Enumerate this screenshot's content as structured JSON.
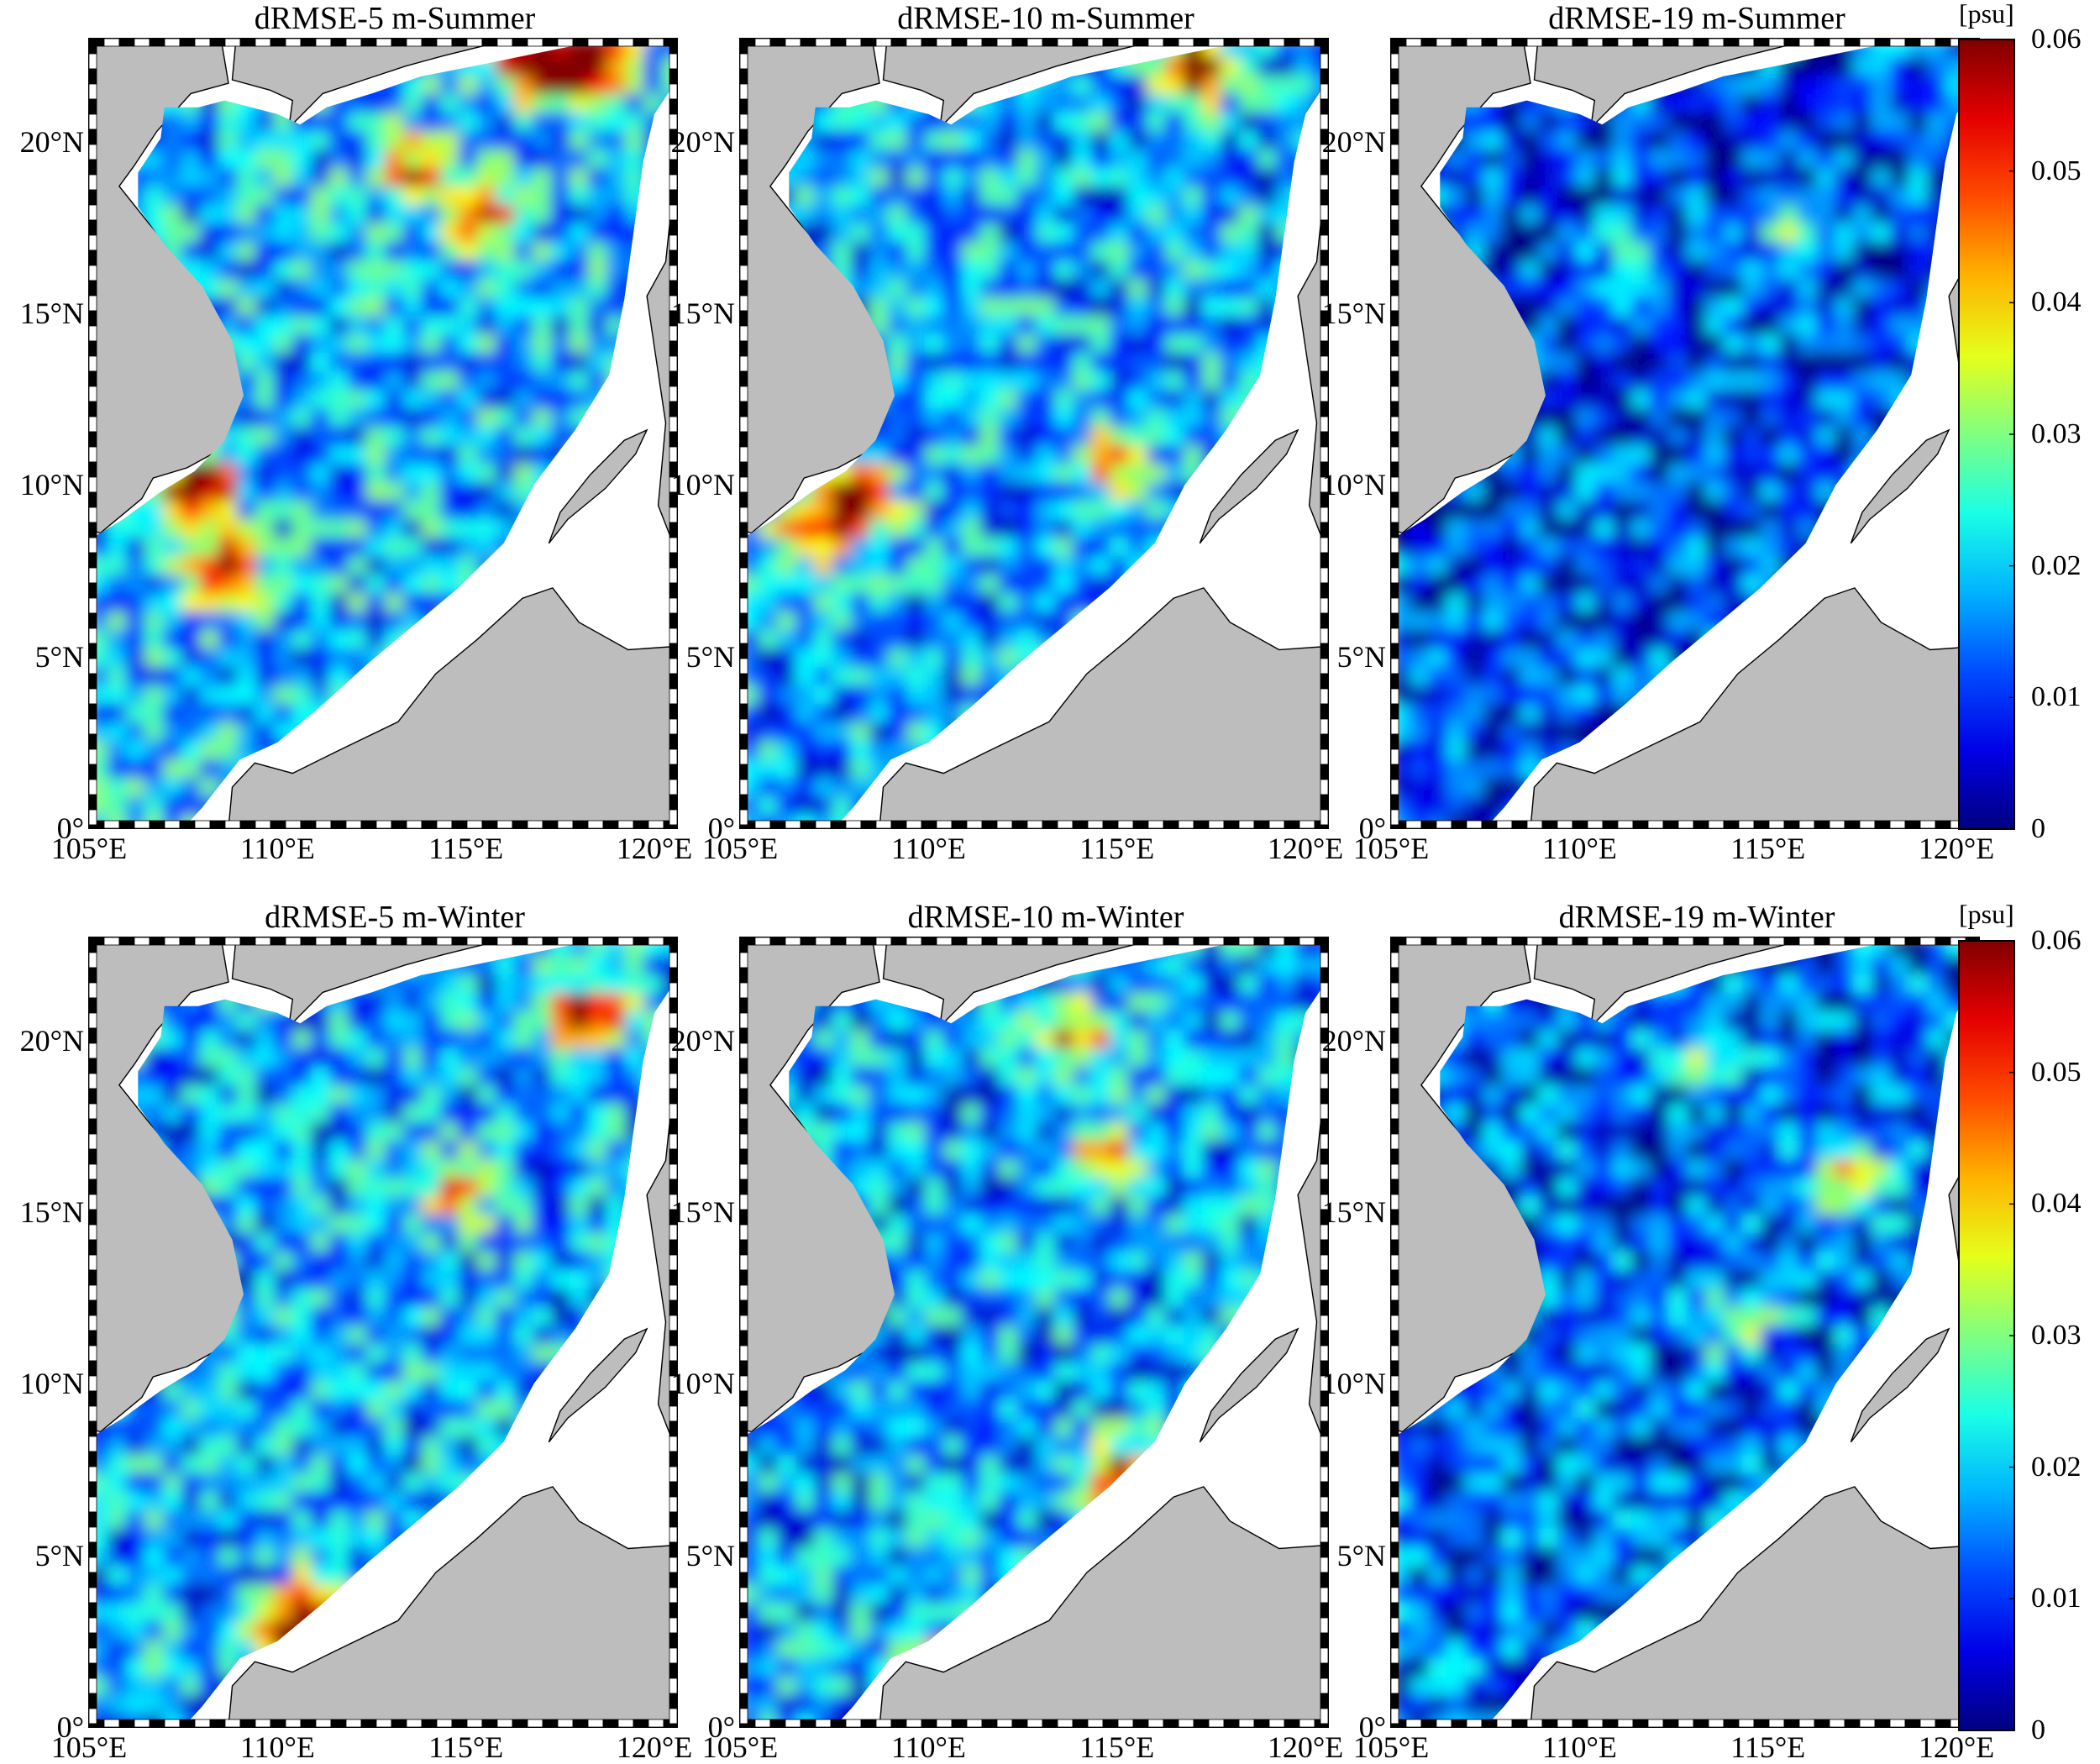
{
  "panels": [
    {
      "title": "dRMSE-5 m-Summer",
      "season": "summer",
      "depth": "5 m"
    },
    {
      "title": "dRMSE-10 m-Summer",
      "season": "summer",
      "depth": "10 m"
    },
    {
      "title": "dRMSE-19 m-Summer",
      "season": "summer",
      "depth": "19 m"
    },
    {
      "title": "dRMSE-5 m-Winter",
      "season": "winter",
      "depth": "5 m"
    },
    {
      "title": "dRMSE-10 m-Winter",
      "season": "winter",
      "depth": "10 m"
    },
    {
      "title": "dRMSE-19 m-Winter",
      "season": "winter",
      "depth": "19 m"
    }
  ],
  "lat_ticks": [
    "0°",
    "5°N",
    "10°N",
    "15°N",
    "20°N"
  ],
  "lon_ticks": [
    "105°E",
    "110°E",
    "115°E",
    "120°E"
  ],
  "colorbar": {
    "unit": "[psu]",
    "ticks": [
      "0",
      "0.01",
      "0.02",
      "0.03",
      "0.04",
      "0.05",
      "0.06"
    ],
    "range": [
      0,
      0.06
    ],
    "colormap": "jet"
  },
  "colors": {
    "land": "#bdbdbd",
    "frame": "#000000",
    "low": "#0a28d8",
    "mid": "#5fe0f0",
    "high": "#e81818"
  },
  "map_extent": {
    "lon": [
      105,
      120.6
    ],
    "lat": [
      0,
      23
    ]
  }
}
